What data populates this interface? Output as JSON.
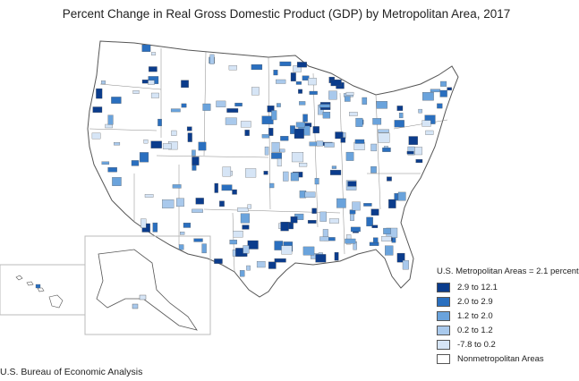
{
  "title": "Percent Change in Real Gross Domestic Product (GDP) by Metropolitan Area, 2017",
  "legend": {
    "title": "U.S. Metropolitan Areas = 2.1 percent",
    "items": [
      {
        "label": "2.9 to 12.1",
        "color": "#0b3c8c"
      },
      {
        "label": "2.0 to 2.9",
        "color": "#2a6fbf"
      },
      {
        "label": "1.2 to 2.0",
        "color": "#6aa3dc"
      },
      {
        "label": "0.2 to 1.2",
        "color": "#a9c9ec"
      },
      {
        "label": "-7.8 to 0.2",
        "color": "#d6e5f6"
      },
      {
        "label": "Nonmetropolitan Areas",
        "color": "#ffffff"
      }
    ]
  },
  "source": "U.S. Bureau of Economic Analysis"
}
